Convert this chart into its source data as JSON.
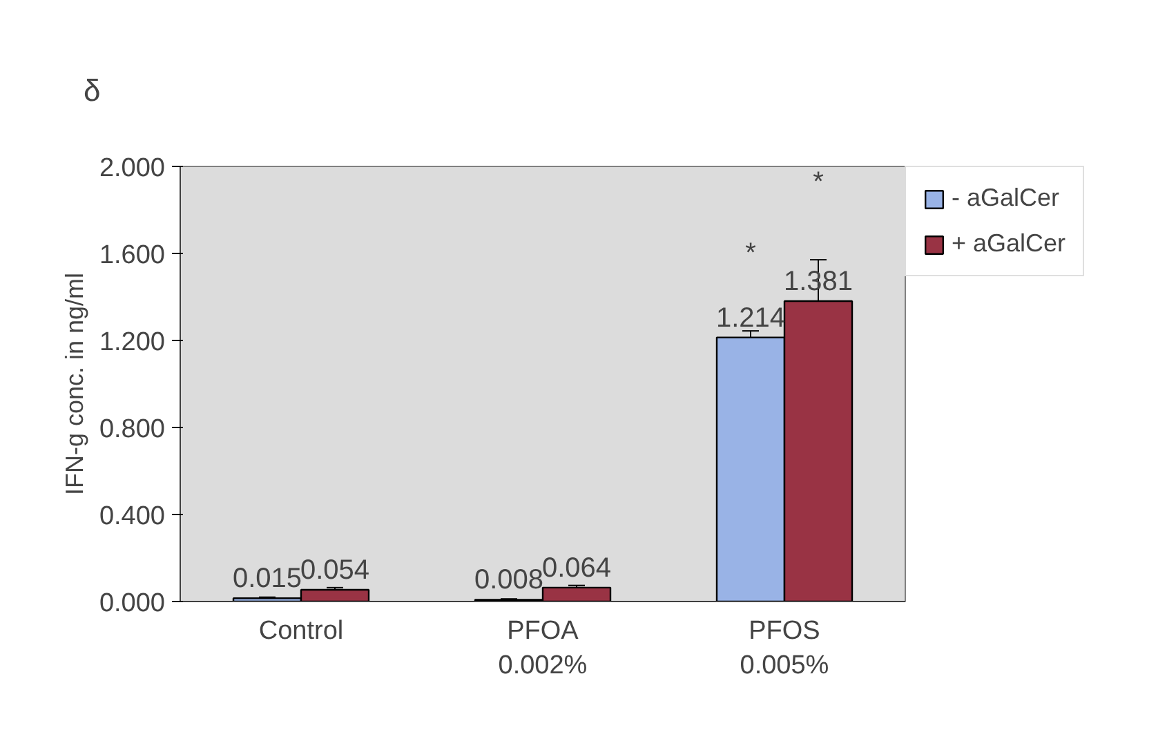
{
  "chart_data": {
    "type": "bar",
    "title": "δ",
    "ylabel": "IFN-g conc. in ng/ml",
    "categories": [
      "Control",
      "PFOA\n0.002%",
      "PFOS\n0.005%"
    ],
    "series": [
      {
        "name": "- aGalCer",
        "color": "#99b3e6",
        "values": [
          0.015,
          0.008,
          1.214
        ],
        "errors": [
          0.005,
          0.004,
          0.03
        ]
      },
      {
        "name": "+ aGalCer",
        "color": "#993344",
        "values": [
          0.054,
          0.064,
          1.381
        ],
        "errors": [
          0.01,
          0.01,
          0.19
        ]
      }
    ],
    "ylim": [
      0,
      2
    ],
    "yticks": [
      {
        "value": 0,
        "label": "0.000"
      },
      {
        "value": 0.4,
        "label": "0.400"
      },
      {
        "value": 0.8,
        "label": "0.800"
      },
      {
        "value": 1.2,
        "label": "1.200"
      },
      {
        "value": 1.6,
        "label": "1.600"
      },
      {
        "value": 2,
        "label": "2.000"
      }
    ],
    "annotations": [
      "*",
      "*"
    ],
    "data_labels": true,
    "grid": false,
    "legend": "right"
  }
}
